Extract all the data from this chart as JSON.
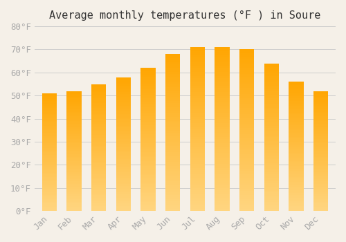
{
  "title": "Average monthly temperatures (°F ) in Soure",
  "months": [
    "Jan",
    "Feb",
    "Mar",
    "Apr",
    "May",
    "Jun",
    "Jul",
    "Aug",
    "Sep",
    "Oct",
    "Nov",
    "Dec"
  ],
  "values": [
    51,
    52,
    55,
    58,
    62,
    68,
    71,
    71,
    70,
    64,
    56,
    52
  ],
  "bar_color_top": "#FFA500",
  "bar_color_bottom": "#FFD580",
  "background_color": "#f5f0e8",
  "grid_color": "#cccccc",
  "text_color": "#aaaaaa",
  "title_color": "#333333",
  "ylim": [
    0,
    80
  ],
  "ytick_step": 10,
  "title_fontsize": 11,
  "tick_fontsize": 9
}
